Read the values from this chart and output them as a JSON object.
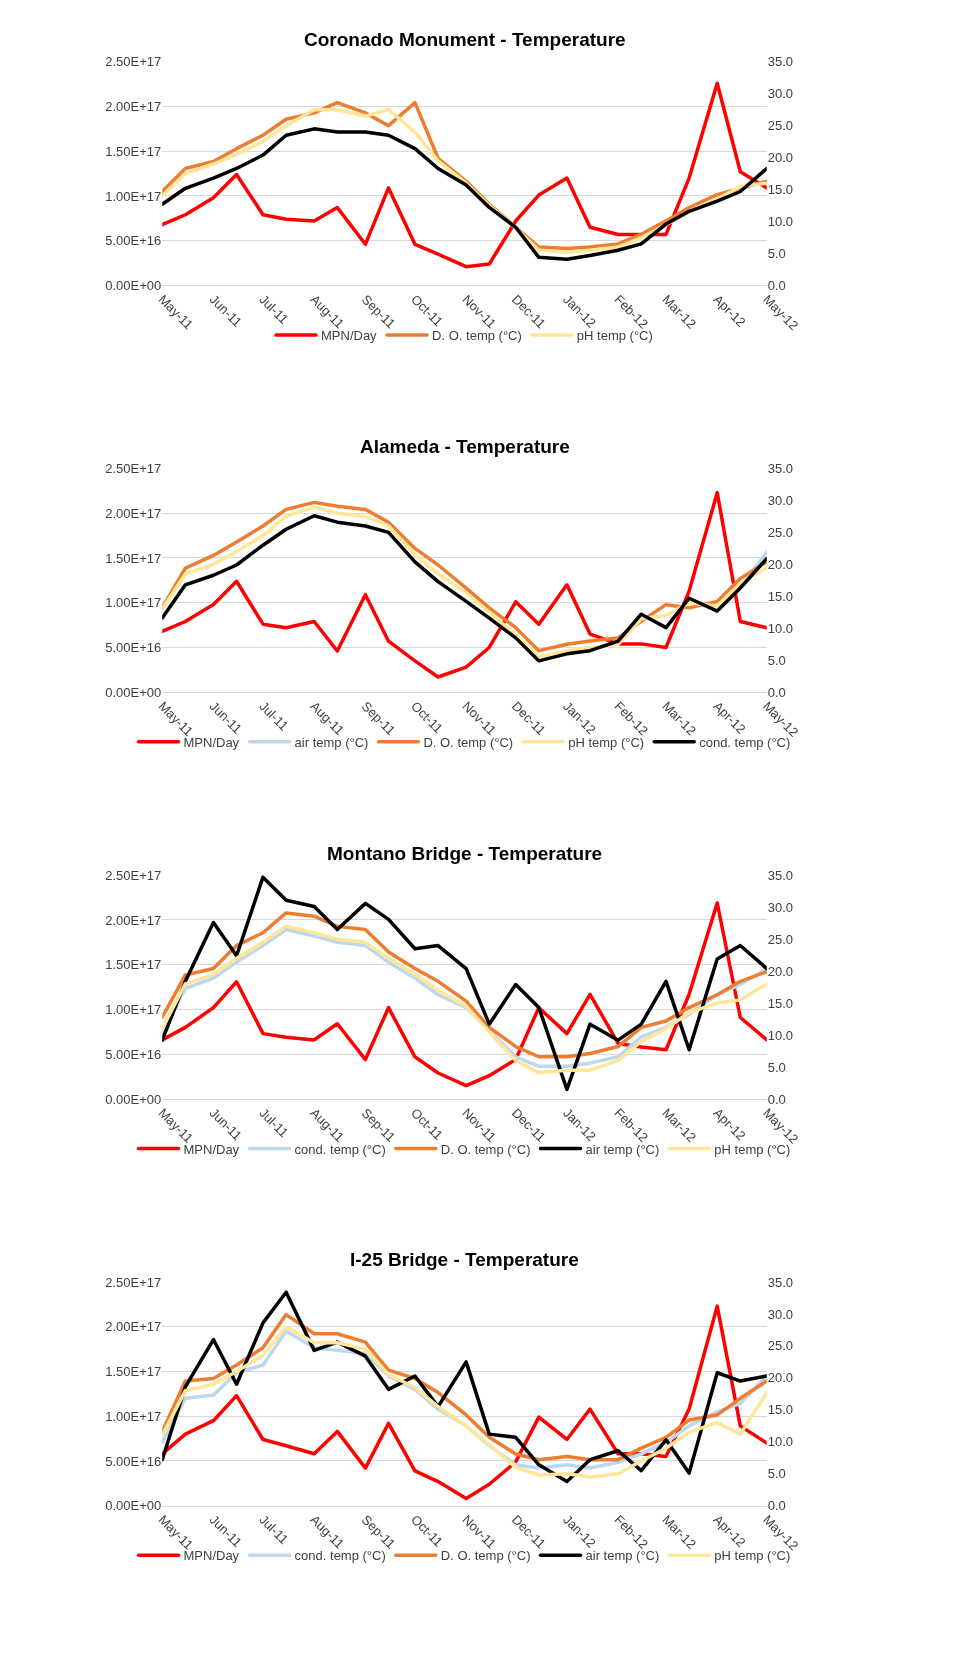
{
  "chart_data": [
    {
      "type": "line",
      "title": "Coronado Monument - Temperature",
      "grid": "y",
      "legend": "bottom",
      "x": [
        "2011-05-01",
        "2011-05-15",
        "2011-06-01",
        "2011-06-15",
        "2011-07-01",
        "2011-07-15",
        "2011-08-01",
        "2011-08-15",
        "2011-09-01",
        "2011-09-15",
        "2011-10-01",
        "2011-10-15",
        "2011-11-01",
        "2011-11-15",
        "2011-12-01",
        "2011-12-15",
        "2012-01-01",
        "2012-01-15",
        "2012-02-01",
        "2012-02-15",
        "2012-03-01",
        "2012-03-15",
        "2012-04-01",
        "2012-04-15",
        "2012-05-01"
      ],
      "xlim": [
        "2011-05-01",
        "2012-05-01"
      ],
      "xticks": [
        {
          "value": "2011-05-01",
          "label": "May-11"
        },
        {
          "value": "2011-06-01",
          "label": "Jun-11"
        },
        {
          "value": "2011-07-01",
          "label": "Jul-11"
        },
        {
          "value": "2011-08-01",
          "label": "Aug-11"
        },
        {
          "value": "2011-09-01",
          "label": "Sep-11"
        },
        {
          "value": "2011-10-01",
          "label": "Oct-11"
        },
        {
          "value": "2011-11-01",
          "label": "Nov-11"
        },
        {
          "value": "2011-12-01",
          "label": "Dec-11"
        },
        {
          "value": "2012-01-01",
          "label": "Jan-12"
        },
        {
          "value": "2012-02-01",
          "label": "Feb-12"
        },
        {
          "value": "2012-03-01",
          "label": "Mar-12"
        },
        {
          "value": "2012-04-01",
          "label": "Apr-12"
        },
        {
          "value": "2012-05-01",
          "label": "May-12"
        }
      ],
      "ylim": [
        0,
        2.5e+17
      ],
      "yticks": [
        {
          "value": 0,
          "label": "0.00E+00"
        },
        {
          "value": 5e+16,
          "label": "5.00E+16"
        },
        {
          "value": 1e+17,
          "label": "1.00E+17"
        },
        {
          "value": 1.5e+17,
          "label": "1.50E+17"
        },
        {
          "value": 2e+17,
          "label": "2.00E+17"
        },
        {
          "value": 2.5e+17,
          "label": "2.50E+17"
        }
      ],
      "y2lim": [
        0,
        35
      ],
      "y2ticks": [
        {
          "value": 0,
          "label": "0.0"
        },
        {
          "value": 5,
          "label": "5.0"
        },
        {
          "value": 10,
          "label": "10.0"
        },
        {
          "value": 15,
          "label": "15.0"
        },
        {
          "value": 20,
          "label": "20.0"
        },
        {
          "value": 25,
          "label": "25.0"
        },
        {
          "value": 30,
          "label": "30.0"
        },
        {
          "value": 35,
          "label": "35.0"
        }
      ],
      "series": [
        {
          "name": "MPN/Day",
          "color": "#ff0000",
          "values": [
            6.8e+16,
            7.9e+16,
            9.8e+16,
            1.24e+17,
            7.9e+16,
            7.4e+16,
            7.2e+16,
            8.7e+16,
            4.6e+16,
            1.09e+17,
            4.6e+16,
            3.5e+16,
            2.1e+16,
            2.4e+16,
            7.2e+16,
            1.01e+17,
            1.2e+17,
            6.5e+16,
            5.7e+16,
            5.7e+16,
            5.7e+16,
            1.2e+17,
            2.26e+17,
            1.27e+17,
            1.09e+17
          ]
        },
        {
          "name": "D. O. temp (°C)",
          "color": "#ed7d31",
          "axis": "y2",
          "values": [
            14.7,
            18.3,
            19.4,
            21.4,
            23.5,
            26,
            27,
            28.6,
            27,
            25,
            28.6,
            19.9,
            16.3,
            12.7,
            9.1,
            6,
            5.8,
            6,
            6.5,
            8,
            10.1,
            12.2,
            14.2,
            15.2,
            16.3
          ]
        },
        {
          "name": "pH temp (°C)",
          "color": "#ffe699",
          "axis": "y2",
          "values": [
            14,
            17.5,
            19,
            20.5,
            22.5,
            25,
            27.5,
            27.5,
            26.5,
            27.5,
            24,
            19.5,
            16,
            12.5,
            9,
            5.5,
            5.2,
            5.5,
            6,
            7.5,
            9.5,
            11.5,
            13.5,
            15.5,
            16
          ]
        },
        {
          "color": "#000000",
          "axis": "y2",
          "values": [
            12.7,
            15.2,
            16.8,
            18.3,
            20.4,
            23.5,
            24.5,
            24,
            24,
            23.5,
            21.4,
            18.3,
            15.7,
            12.2,
            9.1,
            4.4,
            4.1,
            4.7,
            5.5,
            6.5,
            9.6,
            11.6,
            13.2,
            14.7,
            18.3
          ]
        }
      ]
    },
    {
      "type": "line",
      "title": "Alameda - Temperature",
      "grid": "y",
      "legend": "bottom",
      "x": [
        "2011-05-01",
        "2011-05-15",
        "2011-06-01",
        "2011-06-15",
        "2011-07-01",
        "2011-07-15",
        "2011-08-01",
        "2011-08-15",
        "2011-09-01",
        "2011-09-15",
        "2011-10-01",
        "2011-10-15",
        "2011-11-01",
        "2011-11-15",
        "2011-12-01",
        "2011-12-15",
        "2012-01-01",
        "2012-01-15",
        "2012-02-01",
        "2012-02-15",
        "2012-03-01",
        "2012-03-15",
        "2012-04-01",
        "2012-04-15",
        "2012-05-01"
      ],
      "xlim": [
        "2011-05-01",
        "2012-05-01"
      ],
      "xticks": [
        {
          "value": "2011-05-01",
          "label": "May-11"
        },
        {
          "value": "2011-06-01",
          "label": "Jun-11"
        },
        {
          "value": "2011-07-01",
          "label": "Jul-11"
        },
        {
          "value": "2011-08-01",
          "label": "Aug-11"
        },
        {
          "value": "2011-09-01",
          "label": "Sep-11"
        },
        {
          "value": "2011-10-01",
          "label": "Oct-11"
        },
        {
          "value": "2011-11-01",
          "label": "Nov-11"
        },
        {
          "value": "2011-12-01",
          "label": "Dec-11"
        },
        {
          "value": "2012-01-01",
          "label": "Jan-12"
        },
        {
          "value": "2012-02-01",
          "label": "Feb-12"
        },
        {
          "value": "2012-03-01",
          "label": "Mar-12"
        },
        {
          "value": "2012-04-01",
          "label": "Apr-12"
        },
        {
          "value": "2012-05-01",
          "label": "May-12"
        }
      ],
      "ylim": [
        0,
        2.5e+17
      ],
      "yticks": [
        {
          "value": 0,
          "label": "0.00E+00"
        },
        {
          "value": 5e+16,
          "label": "5.00E+16"
        },
        {
          "value": 1e+17,
          "label": "1.00E+17"
        },
        {
          "value": 1.5e+17,
          "label": "1.50E+17"
        },
        {
          "value": 2e+17,
          "label": "2.00E+17"
        },
        {
          "value": 2.5e+17,
          "label": "2.50E+17"
        }
      ],
      "y2lim": [
        0,
        35
      ],
      "y2ticks": [
        {
          "value": 0,
          "label": "0.0"
        },
        {
          "value": 5,
          "label": "5.0"
        },
        {
          "value": 10,
          "label": "10.0"
        },
        {
          "value": 15,
          "label": "15.0"
        },
        {
          "value": 20,
          "label": "20.0"
        },
        {
          "value": 25,
          "label": "25.0"
        },
        {
          "value": 30,
          "label": "30.0"
        },
        {
          "value": 35,
          "label": "35.0"
        }
      ],
      "series": [
        {
          "name": "MPN/Day",
          "color": "#ff0000",
          "values": [
            6.8e+16,
            7.9e+16,
            9.8e+16,
            1.24e+17,
            7.6e+16,
            7.2e+16,
            7.9e+16,
            4.6e+16,
            1.09e+17,
            5.7e+16,
            3.5e+16,
            1.7e+16,
            2.8e+16,
            5e+16,
            1.01e+17,
            7.6e+16,
            1.2e+17,
            6.5e+16,
            5.4e+16,
            5.4e+16,
            5e+16,
            1.13e+17,
            2.23e+17,
            7.9e+16,
            7.2e+16
          ]
        },
        {
          "name": "air temp (°C)",
          "color": "#bdd7ee",
          "axis": "y2",
          "values": [
            null,
            null,
            null,
            null,
            null,
            null,
            null,
            null,
            null,
            null,
            null,
            null,
            null,
            null,
            null,
            null,
            null,
            null,
            null,
            null,
            null,
            null,
            null,
            16.5,
            21.9
          ]
        },
        {
          "name": "D. O. temp (°C)",
          "color": "#ed7d31",
          "axis": "y2",
          "values": [
            13.2,
            19.4,
            21.4,
            23.5,
            26,
            28.6,
            29.7,
            29.1,
            28.6,
            26.6,
            22.5,
            19.9,
            16.3,
            13.2,
            10.1,
            6.5,
            7.5,
            8,
            8.5,
            11.1,
            13.7,
            13.2,
            14.2,
            17.8,
            20.4
          ]
        },
        {
          "name": "pH temp (°C)",
          "color": "#ffe699",
          "axis": "y2",
          "values": [
            13,
            18.5,
            20,
            22,
            24.5,
            27.5,
            29,
            28,
            27.5,
            26,
            21.5,
            18.5,
            15.5,
            12.5,
            9,
            5.5,
            6.5,
            7,
            7.5,
            11.5,
            12,
            14,
            13.5,
            17,
            19.5
          ]
        },
        {
          "name": "cond. temp (°C)",
          "color": "#000000",
          "axis": "y2",
          "values": [
            11.6,
            16.8,
            18.3,
            19.9,
            23,
            25.5,
            27.6,
            26.6,
            26,
            25,
            20.4,
            17.3,
            14.2,
            11.6,
            8.5,
            4.9,
            6,
            6.5,
            8,
            12.2,
            10.1,
            14.7,
            12.7,
            16.3,
            20.9
          ]
        }
      ]
    },
    {
      "type": "line",
      "title": "Montano Bridge - Temperature",
      "grid": "y",
      "legend": "bottom",
      "x": [
        "2011-05-01",
        "2011-05-15",
        "2011-06-01",
        "2011-06-15",
        "2011-07-01",
        "2011-07-15",
        "2011-08-01",
        "2011-08-15",
        "2011-09-01",
        "2011-09-15",
        "2011-10-01",
        "2011-10-15",
        "2011-11-01",
        "2011-11-15",
        "2011-12-01",
        "2011-12-15",
        "2012-01-01",
        "2012-01-15",
        "2012-02-01",
        "2012-02-15",
        "2012-03-01",
        "2012-03-15",
        "2012-04-01",
        "2012-04-15",
        "2012-05-01"
      ],
      "xlim": [
        "2011-05-01",
        "2012-05-01"
      ],
      "xticks": [
        {
          "value": "2011-05-01",
          "label": "May-11"
        },
        {
          "value": "2011-06-01",
          "label": "Jun-11"
        },
        {
          "value": "2011-07-01",
          "label": "Jul-11"
        },
        {
          "value": "2011-08-01",
          "label": "Aug-11"
        },
        {
          "value": "2011-09-01",
          "label": "Sep-11"
        },
        {
          "value": "2011-10-01",
          "label": "Oct-11"
        },
        {
          "value": "2011-11-01",
          "label": "Nov-11"
        },
        {
          "value": "2011-12-01",
          "label": "Dec-11"
        },
        {
          "value": "2012-01-01",
          "label": "Jan-12"
        },
        {
          "value": "2012-02-01",
          "label": "Feb-12"
        },
        {
          "value": "2012-03-01",
          "label": "Mar-12"
        },
        {
          "value": "2012-04-01",
          "label": "Apr-12"
        },
        {
          "value": "2012-05-01",
          "label": "May-12"
        }
      ],
      "ylim": [
        0,
        2.5e+17
      ],
      "yticks": [
        {
          "value": 0,
          "label": "0.00E+00"
        },
        {
          "value": 5e+16,
          "label": "5.00E+16"
        },
        {
          "value": 1e+17,
          "label": "1.00E+17"
        },
        {
          "value": 1.5e+17,
          "label": "1.50E+17"
        },
        {
          "value": 2e+17,
          "label": "2.00E+17"
        },
        {
          "value": 2.5e+17,
          "label": "2.50E+17"
        }
      ],
      "y2lim": [
        0,
        35
      ],
      "y2ticks": [
        {
          "value": 0,
          "label": "0.0"
        },
        {
          "value": 5,
          "label": "5.0"
        },
        {
          "value": 10,
          "label": "10.0"
        },
        {
          "value": 15,
          "label": "15.0"
        },
        {
          "value": 20,
          "label": "20.0"
        },
        {
          "value": 25,
          "label": "25.0"
        },
        {
          "value": 30,
          "label": "30.0"
        },
        {
          "value": 35,
          "label": "35.0"
        }
      ],
      "series": [
        {
          "name": "MPN/Day",
          "color": "#ff0000",
          "values": [
            6.6e+16,
            8e+16,
            1.02e+17,
            1.31e+17,
            7.3e+16,
            6.9e+16,
            6.6e+16,
            8.4e+16,
            4.4e+16,
            1.02e+17,
            4.7e+16,
            2.9e+16,
            1.5e+16,
            2.6e+16,
            4.4e+16,
            1.02e+17,
            7.3e+16,
            1.17e+17,
            6.2e+16,
            5.8e+16,
            5.5e+16,
            1.17e+17,
            2.19e+17,
            9.1e+16,
            6.6e+16
          ]
        },
        {
          "name": "cond. temp (°C)",
          "color": "#bdd7ee",
          "axis": "y2",
          "values": [
            10.2,
            17.3,
            18.9,
            21.4,
            24,
            26.5,
            25.5,
            24.5,
            24,
            21.4,
            18.9,
            16.3,
            14.3,
            10.7,
            6.6,
            5.1,
            5.1,
            5.6,
            6.6,
            9.7,
            11.2,
            13.3,
            16.3,
            17.9,
            20.4
          ]
        },
        {
          "name": "D. O. temp (°C)",
          "color": "#ed7d31",
          "axis": "y2",
          "values": [
            12.8,
            19.4,
            20.4,
            24,
            26,
            29.1,
            28.6,
            27,
            26.5,
            23,
            20.4,
            18.4,
            15.3,
            11.2,
            8.2,
            6.6,
            6.6,
            7.1,
            8.2,
            11.2,
            12.2,
            14.3,
            16.3,
            18.4,
            19.9
          ]
        },
        {
          "name": "air temp (°C)",
          "color": "#000000",
          "axis": "y2",
          "values": [
            9.2,
            18.4,
            27.6,
            22.4,
            34.7,
            31.1,
            30.1,
            26.5,
            30.6,
            28.1,
            23.5,
            24,
            20.4,
            11.7,
            17.9,
            14.3,
            1.5,
            11.7,
            9.2,
            11.7,
            18.4,
            7.7,
            21.9,
            24,
            20.4
          ]
        },
        {
          "name": "pH temp (°C)",
          "color": "#ffe699",
          "axis": "y2",
          "values": [
            11,
            18,
            19.5,
            22,
            24.5,
            27,
            26,
            25,
            24.5,
            22,
            19.5,
            17,
            14.5,
            10.5,
            6,
            4.1,
            4.5,
            4.5,
            6,
            9,
            11,
            13.5,
            15,
            15.5,
            18
          ]
        }
      ]
    },
    {
      "type": "line",
      "title": "I-25 Bridge - Temperature",
      "grid": "y",
      "legend": "bottom",
      "x": [
        "2011-05-01",
        "2011-05-15",
        "2011-06-01",
        "2011-06-15",
        "2011-07-01",
        "2011-07-15",
        "2011-08-01",
        "2011-08-15",
        "2011-09-01",
        "2011-09-15",
        "2011-10-01",
        "2011-10-15",
        "2011-11-01",
        "2011-11-15",
        "2011-12-01",
        "2011-12-15",
        "2012-01-01",
        "2012-01-15",
        "2012-02-01",
        "2012-02-15",
        "2012-03-01",
        "2012-03-15",
        "2012-04-01",
        "2012-04-15",
        "2012-05-01"
      ],
      "xlim": [
        "2011-05-01",
        "2012-05-01"
      ],
      "xticks": [
        {
          "value": "2011-05-01",
          "label": "May-11"
        },
        {
          "value": "2011-06-01",
          "label": "Jun-11"
        },
        {
          "value": "2011-07-01",
          "label": "Jul-11"
        },
        {
          "value": "2011-08-01",
          "label": "Aug-11"
        },
        {
          "value": "2011-09-01",
          "label": "Sep-11"
        },
        {
          "value": "2011-10-01",
          "label": "Oct-11"
        },
        {
          "value": "2011-11-01",
          "label": "Nov-11"
        },
        {
          "value": "2011-12-01",
          "label": "Dec-11"
        },
        {
          "value": "2012-01-01",
          "label": "Jan-12"
        },
        {
          "value": "2012-02-01",
          "label": "Feb-12"
        },
        {
          "value": "2012-03-01",
          "label": "Mar-12"
        },
        {
          "value": "2012-04-01",
          "label": "Apr-12"
        },
        {
          "value": "2012-05-01",
          "label": "May-12"
        }
      ],
      "ylim": [
        0,
        2.5e+17
      ],
      "yticks": [
        {
          "value": 0,
          "label": "0.00E+00"
        },
        {
          "value": 5e+16,
          "label": "5.00E+16"
        },
        {
          "value": 1e+17,
          "label": "1.00E+17"
        },
        {
          "value": 1.5e+17,
          "label": "1.50E+17"
        },
        {
          "value": 2e+17,
          "label": "2.00E+17"
        },
        {
          "value": 2.5e+17,
          "label": "2.50E+17"
        }
      ],
      "y2lim": [
        0,
        35
      ],
      "y2ticks": [
        {
          "value": 0,
          "label": "0.0"
        },
        {
          "value": 5,
          "label": "5.0"
        },
        {
          "value": 10,
          "label": "10.0"
        },
        {
          "value": 15,
          "label": "15.0"
        },
        {
          "value": 20,
          "label": "20.0"
        },
        {
          "value": 25,
          "label": "25.0"
        },
        {
          "value": 30,
          "label": "30.0"
        },
        {
          "value": 35,
          "label": "35.0"
        }
      ],
      "series": [
        {
          "name": "MPN/Day",
          "color": "#ff0000",
          "values": [
            5.8e+16,
            8e+16,
            9.5e+16,
            1.23e+17,
            7.4e+16,
            6.7e+16,
            5.8e+16,
            8.3e+16,
            4.2e+16,
            9.2e+16,
            3.9e+16,
            2.7e+16,
            8000000000000000.0,
            2.4e+16,
            4.9e+16,
            9.9e+16,
            7.4e+16,
            1.08e+17,
            5.8e+16,
            5.8e+16,
            5.5e+16,
            1.08e+17,
            2.23e+17,
            8.9e+16,
            7e+16
          ]
        },
        {
          "name": "cond. temp (°C)",
          "color": "#bdd7ee",
          "axis": "y2",
          "values": [
            9.9,
            16.8,
            17.3,
            20.8,
            22,
            27.3,
            24.7,
            24.3,
            23.8,
            20.3,
            18.2,
            15.1,
            12.5,
            9.4,
            6.4,
            5.9,
            6.4,
            5.9,
            6.8,
            8.1,
            9.9,
            12.5,
            14.7,
            16,
            20.3
          ]
        },
        {
          "name": "D. O. temp (°C)",
          "color": "#ed7d31",
          "axis": "y2",
          "values": [
            11.6,
            19.5,
            19.9,
            22,
            24.7,
            29.9,
            26.9,
            26.9,
            25.6,
            21.2,
            19.9,
            17.7,
            14.2,
            10.7,
            8.1,
            7.2,
            7.7,
            7.2,
            7.2,
            9,
            10.7,
            13.4,
            14.2,
            16.8,
            19.5
          ]
        },
        {
          "name": "air temp (°C)",
          "color": "#000000",
          "axis": "y2",
          "values": [
            7.2,
            18.6,
            26,
            19,
            28.6,
            33.4,
            24.3,
            25.6,
            23.4,
            18.2,
            20.3,
            15.5,
            22.5,
            11.2,
            10.7,
            6.4,
            3.8,
            7.2,
            8.6,
            5.5,
            10.3,
            5.1,
            20.8,
            19.5,
            20.3
          ]
        },
        {
          "name": "pH temp (°C)",
          "color": "#ffe699",
          "axis": "y2",
          "values": [
            11,
            18,
            19,
            21,
            23.5,
            28,
            25.5,
            25.5,
            24.5,
            20.5,
            18.5,
            15.5,
            12.5,
            9.5,
            6,
            4.8,
            5,
            4.5,
            5,
            7,
            9,
            11.5,
            13,
            11.2,
            17.7
          ]
        }
      ]
    }
  ]
}
